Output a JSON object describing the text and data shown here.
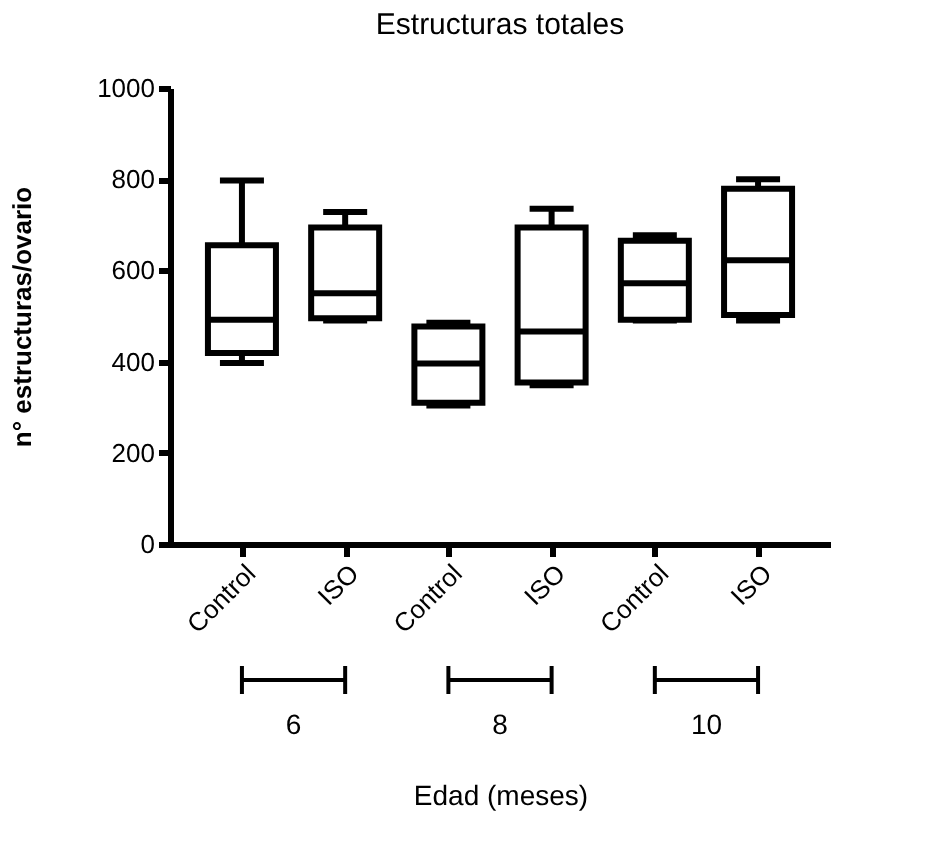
{
  "chart_data": {
    "type": "box",
    "title": "Estructuras totales",
    "xlabel": "Edad (meses)",
    "ylabel": "n° estructuras/ovario",
    "categories": [
      "Control",
      "ISO",
      "Control",
      "ISO",
      "Control",
      "ISO"
    ],
    "boxes": [
      {
        "low": 397,
        "q1": 419,
        "median": 492,
        "q3": 655,
        "high": 797
      },
      {
        "low": 490,
        "q1": 495,
        "median": 550,
        "q3": 694,
        "high": 728
      },
      {
        "low": 304,
        "q1": 310,
        "median": 396,
        "q3": 477,
        "high": 485
      },
      {
        "low": 348,
        "q1": 354,
        "median": 466,
        "q3": 694,
        "high": 735
      },
      {
        "low": 490,
        "q1": 492,
        "median": 572,
        "q3": 665,
        "high": 677
      },
      {
        "low": 490,
        "q1": 502,
        "median": 622,
        "q3": 779,
        "high": 800
      }
    ],
    "color": "#000000",
    "annotations": [
      "6",
      "8",
      "10"
    ],
    "ylim": [
      0,
      1000
    ],
    "yticks": [
      0,
      200,
      400,
      600,
      800,
      1000
    ],
    "grid": false
  }
}
